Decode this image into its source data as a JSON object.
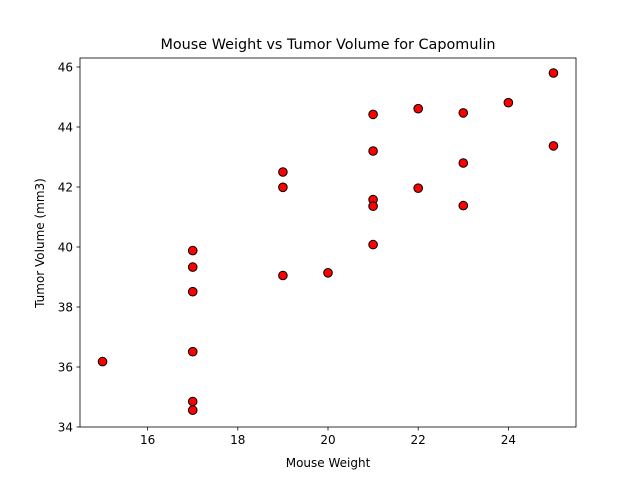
{
  "chart_data": {
    "type": "scatter",
    "title": "Mouse Weight vs Tumor Volume for Capomulin",
    "xlabel": "Mouse Weight",
    "ylabel": "Tumor Volume (mm3)",
    "xlim": [
      14.5,
      25.5
    ],
    "ylim": [
      34,
      46.3
    ],
    "xticks": [
      16,
      18,
      20,
      22,
      24
    ],
    "yticks": [
      34,
      36,
      38,
      40,
      42,
      44,
      46
    ],
    "grid": false,
    "legend": "none",
    "marker_fill": "#ff0000",
    "marker_edge": "#000000",
    "points": [
      {
        "x": 15,
        "y": 36.18
      },
      {
        "x": 17,
        "y": 39.88
      },
      {
        "x": 17,
        "y": 39.33
      },
      {
        "x": 17,
        "y": 38.51
      },
      {
        "x": 17,
        "y": 36.51
      },
      {
        "x": 17,
        "y": 34.85
      },
      {
        "x": 17,
        "y": 34.56
      },
      {
        "x": 19,
        "y": 42.5
      },
      {
        "x": 19,
        "y": 41.99
      },
      {
        "x": 19,
        "y": 39.05
      },
      {
        "x": 20,
        "y": 39.14
      },
      {
        "x": 21,
        "y": 44.42
      },
      {
        "x": 21,
        "y": 43.2
      },
      {
        "x": 21,
        "y": 41.58
      },
      {
        "x": 21,
        "y": 41.36
      },
      {
        "x": 21,
        "y": 40.08
      },
      {
        "x": 22,
        "y": 44.61
      },
      {
        "x": 22,
        "y": 41.96
      },
      {
        "x": 23,
        "y": 44.47
      },
      {
        "x": 23,
        "y": 42.8
      },
      {
        "x": 23,
        "y": 41.38
      },
      {
        "x": 24,
        "y": 44.81
      },
      {
        "x": 25,
        "y": 45.8
      },
      {
        "x": 25,
        "y": 43.37
      }
    ]
  }
}
